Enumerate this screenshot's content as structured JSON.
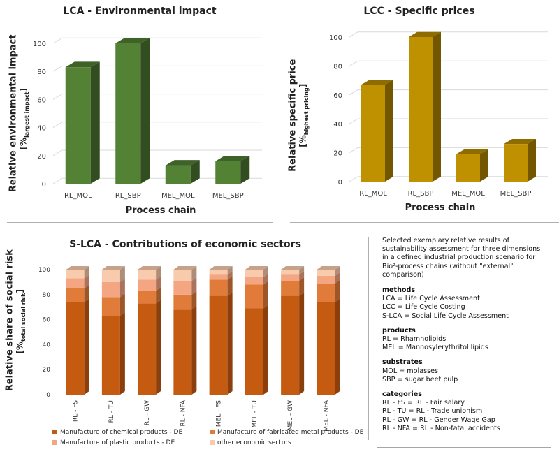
{
  "chart_data": [
    {
      "type": "bar",
      "title": "LCA - Environmental impact",
      "xlabel": "Process chain",
      "ylabel": "Relative environmental impact",
      "ylabel_unit": "[%",
      "ylabel_unit_sub": "largest impact",
      "ylabel_unit_end": "]",
      "categories": [
        "RL_MOL",
        "RL_SBP",
        "MEL_MOL",
        "MEL_SBP"
      ],
      "values": [
        83,
        100,
        13,
        16
      ],
      "ylim": [
        0,
        100
      ],
      "yticks": [
        "0",
        "20",
        "40",
        "60",
        "80",
        "100"
      ],
      "grid": true,
      "color": "#548235"
    },
    {
      "type": "bar",
      "title": "LCC - Specific prices",
      "xlabel": "Process chain",
      "ylabel": "Relative specific price",
      "ylabel_unit": "[%",
      "ylabel_unit_sub": "highest pricing",
      "ylabel_unit_end": "]",
      "categories": [
        "RL_MOL",
        "RL_SBP",
        "MEL_MOL",
        "MEL_SBP"
      ],
      "values": [
        67,
        100,
        19,
        26
      ],
      "ylim": [
        0,
        100
      ],
      "yticks": [
        "0",
        "20",
        "40",
        "60",
        "80",
        "100"
      ],
      "grid": true,
      "color": "#bf9000"
    },
    {
      "type": "bar",
      "stacked": true,
      "title": "S-LCA - Contributions of economic sectors",
      "ylabel": "Relative share of social risk",
      "ylabel_unit": "[%",
      "ylabel_unit_sub": "total social risk",
      "ylabel_unit_end": "]",
      "categories": [
        "RL - FS",
        "RL - TU",
        "RL - GW",
        "RL - NFA",
        "MEL - FS",
        "MEL - TU",
        "MEL - GW",
        "MEL - NFA"
      ],
      "series": [
        {
          "name": "Manufacture of chemical products - DE",
          "values": [
            74,
            63,
            73,
            68,
            79,
            69,
            79,
            74
          ],
          "color": "#c55a11"
        },
        {
          "name": "Manufacture of fabricated metal products - DE",
          "values": [
            11,
            15,
            10,
            12,
            13,
            19,
            12,
            15
          ],
          "color": "#e07b39"
        },
        {
          "name": "Manufacture of plastic products - DE",
          "values": [
            8,
            12,
            9,
            11,
            4,
            6,
            5,
            6
          ],
          "color": "#f4a582"
        },
        {
          "name": "other economic sectors",
          "values": [
            7,
            10,
            8,
            9,
            4,
            6,
            4,
            5
          ],
          "color": "#f8cbad"
        }
      ],
      "ylim": [
        0,
        100
      ],
      "yticks": [
        "0",
        "20",
        "40",
        "60",
        "80",
        "100"
      ],
      "grid": false,
      "legend": "bottom"
    }
  ],
  "notes": {
    "intro": "Selected exemplary relative results of sustainability assessment for three dimensions in a defined industrial production scenario for Bio²-process chains (without \"external\" comparison)",
    "sections": [
      {
        "heading": "methods",
        "lines": [
          "LCA = Life Cycle Assessment",
          "LCC = Life Cycle Costing",
          "S-LCA = Social Life Cycle Assessment"
        ]
      },
      {
        "heading": "products",
        "lines": [
          "RL = Rhamnolipids",
          "MEL = Mannosylerythritol lipids"
        ]
      },
      {
        "heading": "substrates",
        "lines": [
          "MOL = molasses",
          "SBP = sugar beet pulp"
        ]
      },
      {
        "heading": "categories",
        "lines": [
          "RL - FS = RL - Fair salary",
          "RL - TU = RL - Trade unionism",
          "RL - GW = RL - Gender Wage Gap",
          "RL - NFA = RL - Non-fatal accidents"
        ]
      }
    ]
  }
}
